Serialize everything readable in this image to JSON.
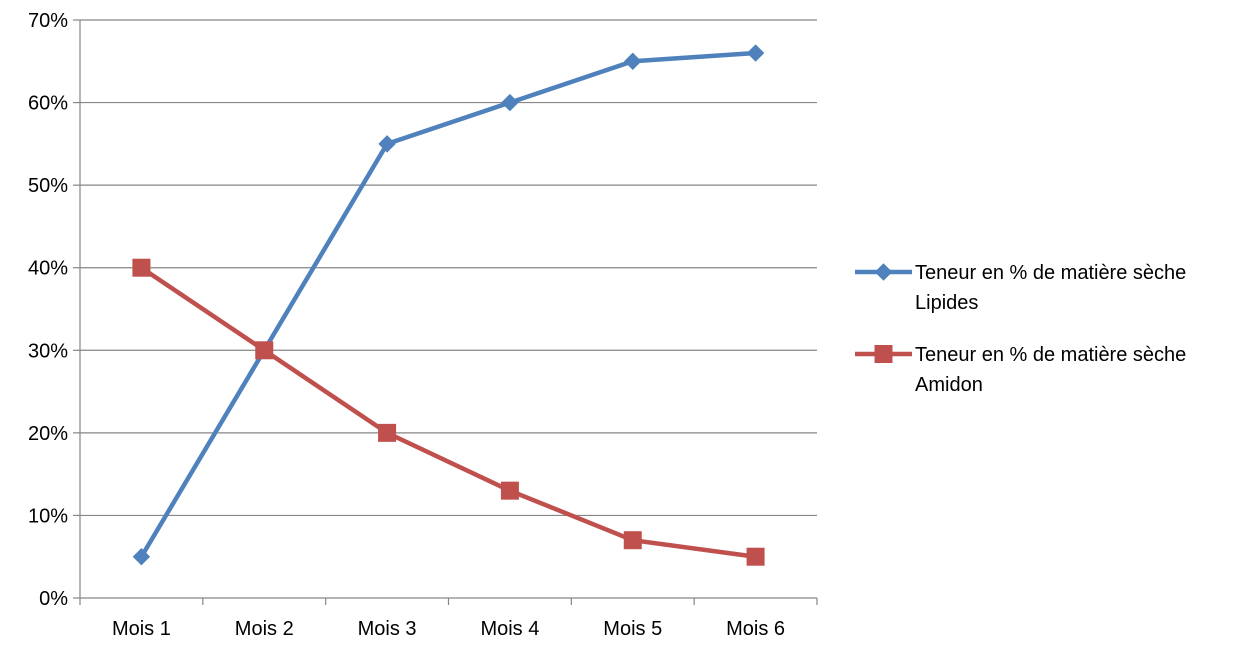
{
  "chart_data": {
    "type": "line",
    "title": "",
    "xlabel": "",
    "ylabel": "",
    "categories": [
      "Mois 1",
      "Mois 2",
      "Mois 3",
      "Mois 4",
      "Mois 5",
      "Mois 6"
    ],
    "ylim": [
      0,
      70
    ],
    "yticks": [
      0,
      10,
      20,
      30,
      40,
      50,
      60,
      70
    ],
    "ytick_labels": [
      "0%",
      "10%",
      "20%",
      "30%",
      "40%",
      "50%",
      "60%",
      "70%"
    ],
    "grid": "horizontal",
    "legend_position": "right",
    "series": [
      {
        "name": "Teneur en % de matière sèche Lipides",
        "legend_lines": [
          "Teneur en % de matière sèche",
          "Lipides"
        ],
        "marker": "diamond",
        "color": "#4F81BD",
        "values": [
          5,
          30,
          55,
          60,
          65,
          66
        ]
      },
      {
        "name": "Teneur en % de matière sèche Amidon",
        "legend_lines": [
          "Teneur en % de matière sèche",
          "Amidon"
        ],
        "marker": "square",
        "color": "#C0504D",
        "values": [
          40,
          30,
          20,
          13,
          7,
          5
        ]
      }
    ]
  }
}
